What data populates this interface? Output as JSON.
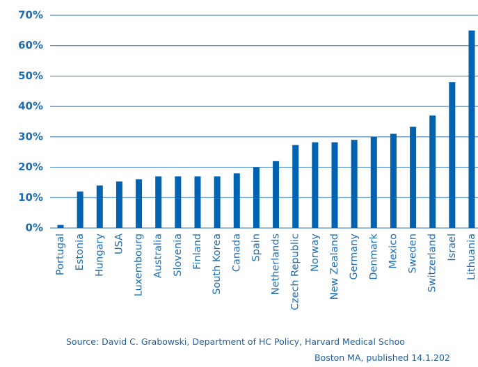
{
  "chart_data": {
    "type": "bar",
    "categories": [
      "Portugal",
      "Estonia",
      "Hungary",
      "USA",
      "Luxembourg",
      "Australia",
      "Slovenia",
      "Finland",
      "South Korea",
      "Canada",
      "Spain",
      "Netherlands",
      "Czech Republic",
      "Norway",
      "New Zealand",
      "Germany",
      "Denmark",
      "Mexico",
      "Sweden",
      "Switzerland",
      "Israel",
      "Lithuania"
    ],
    "values": [
      1,
      12,
      14,
      15.3,
      16,
      17,
      17,
      17,
      17,
      18,
      20,
      22,
      27.3,
      28.2,
      28.2,
      29,
      30,
      31,
      33.3,
      37,
      48,
      65
    ],
    "color": "#0063b1",
    "ylim": [
      0,
      70
    ],
    "yticks": [
      {
        "value": 0,
        "label": "0%"
      },
      {
        "value": 10,
        "label": "10%"
      },
      {
        "value": 20,
        "label": "20%"
      },
      {
        "value": 30,
        "label": "30%"
      },
      {
        "value": 40,
        "label": "40%"
      },
      {
        "value": 50,
        "label": "50%"
      },
      {
        "value": 60,
        "label": "60%"
      },
      {
        "value": 70,
        "label": "70%"
      }
    ],
    "grid": true,
    "source": [
      "Source: David C. Grabowski, Department of HC Policy, Harvard Medical Schoo",
      "Boston MA, published 14.1.202"
    ]
  }
}
